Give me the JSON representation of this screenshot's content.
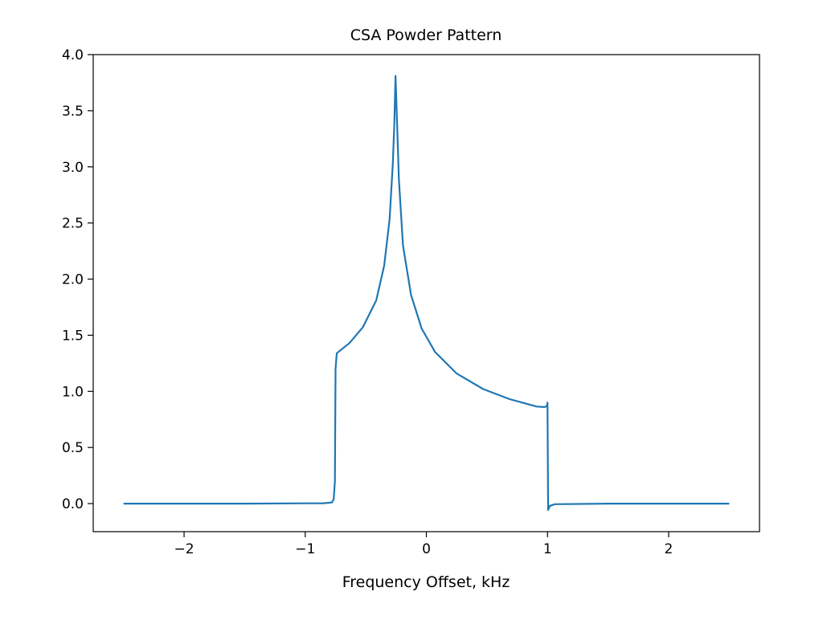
{
  "chart_data": {
    "type": "line",
    "title": "CSA Powder Pattern",
    "xlabel": "Frequency Offset, kHz",
    "ylabel": "",
    "xlim": [
      -2.75,
      2.75
    ],
    "ylim": [
      -0.25,
      4.0
    ],
    "grid": false,
    "line_color": "#1f77b4",
    "xticks": [
      -2,
      -1,
      0,
      1,
      2
    ],
    "xtick_labels": [
      "−2",
      "−1",
      "0",
      "1",
      "2"
    ],
    "yticks": [
      0.0,
      0.5,
      1.0,
      1.5,
      2.0,
      2.5,
      3.0,
      3.5,
      4.0
    ],
    "ytick_labels": [
      "0.0",
      "0.5",
      "1.0",
      "1.5",
      "2.0",
      "2.5",
      "3.0",
      "3.5",
      "4.0"
    ],
    "series": [
      {
        "x": [
          -2.5,
          -1.5,
          -0.85,
          -0.78,
          -0.765,
          -0.755,
          -0.75,
          -0.74,
          -0.635,
          -0.525,
          -0.414,
          -0.348,
          -0.304,
          -0.277,
          -0.264,
          -0.255,
          -0.242,
          -0.227,
          -0.193,
          -0.127,
          -0.039,
          0.072,
          0.249,
          0.47,
          0.69,
          0.91,
          0.975,
          0.995,
          1.0,
          1.005,
          1.02,
          1.06,
          1.5,
          2.5
        ],
        "y": [
          0.0,
          0.0,
          0.003,
          0.01,
          0.04,
          0.2,
          1.2,
          1.34,
          1.43,
          1.57,
          1.81,
          2.12,
          2.53,
          3.02,
          3.4,
          3.81,
          3.4,
          2.89,
          2.3,
          1.86,
          1.56,
          1.35,
          1.16,
          1.02,
          0.93,
          0.865,
          0.86,
          0.87,
          0.9,
          -0.056,
          -0.02,
          -0.005,
          0.0,
          0.0
        ]
      }
    ]
  }
}
